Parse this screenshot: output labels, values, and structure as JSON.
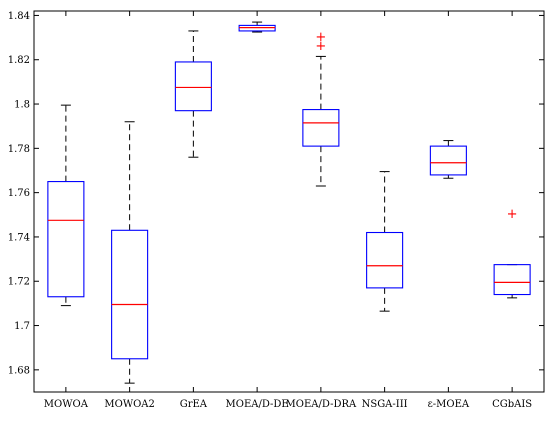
{
  "chart_data": {
    "type": "boxplot",
    "title": "",
    "xlabel": "",
    "ylabel": "",
    "ylim": [
      1.67,
      1.842
    ],
    "yticks": [
      1.68,
      1.7,
      1.72,
      1.74,
      1.76,
      1.78,
      1.8,
      1.82,
      1.84
    ],
    "ytick_labels": [
      "1.68",
      "1.7",
      "1.72",
      "1.74",
      "1.76",
      "1.78",
      "1.8",
      "1.82",
      "1.84"
    ],
    "grid": false,
    "box_color": "#0000ff",
    "median_color": "#ff0000",
    "whisker_color": "#000000",
    "outlier_color": "#ff0000",
    "categories": [
      "MOWOA",
      "MOWOA2",
      "GrEA",
      "MOEA/D-DE",
      "MOEA/D-DRA",
      "NSGA-III",
      "ε-MOEA",
      "CGbAIS"
    ],
    "boxes": [
      {
        "min": 1.709,
        "q1": 1.713,
        "median": 1.7475,
        "q3": 1.765,
        "max": 1.7995,
        "outliers": []
      },
      {
        "min": 1.674,
        "q1": 1.685,
        "median": 1.7095,
        "q3": 1.743,
        "max": 1.792,
        "outliers": []
      },
      {
        "min": 1.776,
        "q1": 1.797,
        "median": 1.8075,
        "q3": 1.819,
        "max": 1.833,
        "outliers": []
      },
      {
        "min": 1.8325,
        "q1": 1.833,
        "median": 1.8345,
        "q3": 1.8355,
        "max": 1.837,
        "outliers": []
      },
      {
        "min": 1.763,
        "q1": 1.781,
        "median": 1.7915,
        "q3": 1.7975,
        "max": 1.8215,
        "outliers": [
          1.8265,
          1.8305
        ]
      },
      {
        "min": 1.7065,
        "q1": 1.717,
        "median": 1.727,
        "q3": 1.742,
        "max": 1.7695,
        "outliers": []
      },
      {
        "min": 1.7665,
        "q1": 1.768,
        "median": 1.7735,
        "q3": 1.781,
        "max": 1.7835,
        "outliers": []
      },
      {
        "min": 1.7125,
        "q1": 1.714,
        "median": 1.7195,
        "q3": 1.7275,
        "max": 1.7275,
        "outliers": [
          1.7505
        ]
      }
    ]
  }
}
